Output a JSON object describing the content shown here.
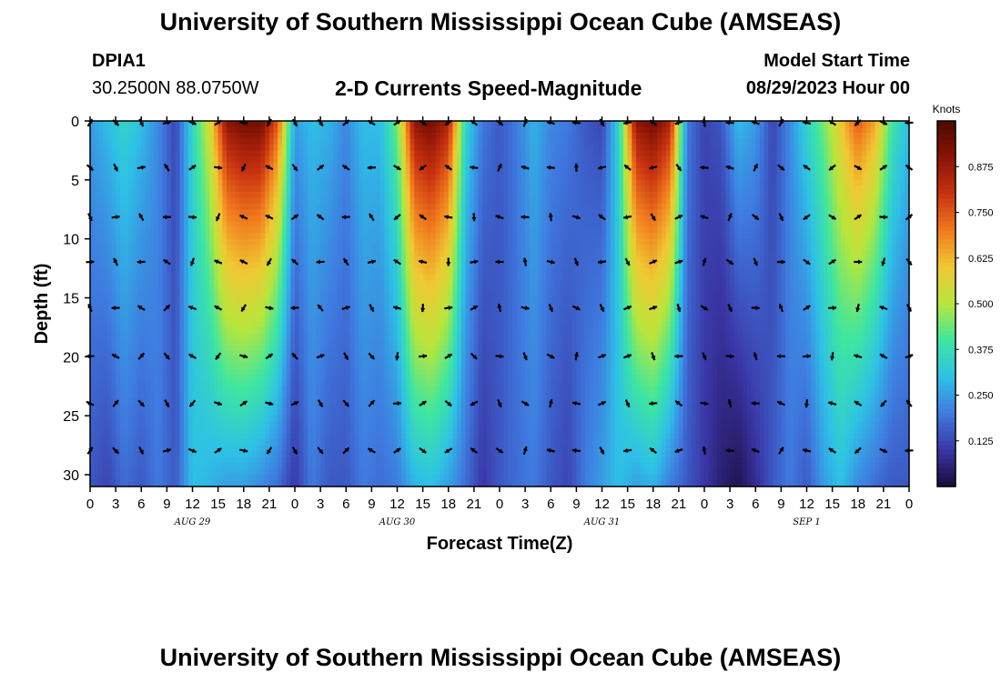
{
  "header": {
    "title": "University of Southern Mississippi Ocean Cube (AMSEAS)",
    "station_id": "DPIA1",
    "station_coords": "30.2500N  88.0750W",
    "plot_title": "2-D Currents Speed-Magnitude",
    "model_start_label": "Model Start Time",
    "model_start_value": "08/29/2023 Hour 00"
  },
  "footer": {
    "title": "University of Southern Mississippi Ocean Cube (AMSEAS)"
  },
  "chart_data": {
    "type": "heatmap",
    "title": "2-D Currents Speed-Magnitude",
    "xlabel": "Forecast Time(Z)",
    "ylabel": "Depth (ft)",
    "x_hours_range": [
      0,
      96
    ],
    "ylim": [
      0,
      31
    ],
    "y_inverted": true,
    "x_tick_labels": [
      "0",
      "3",
      "6",
      "9",
      "12",
      "15",
      "18",
      "21",
      "0",
      "3",
      "6",
      "9",
      "12",
      "15",
      "18",
      "21",
      "0",
      "3",
      "6",
      "9",
      "12",
      "15",
      "18",
      "21",
      "0",
      "3",
      "6",
      "9",
      "12",
      "15",
      "18",
      "21",
      "0"
    ],
    "y_ticks": [
      0,
      5,
      10,
      15,
      20,
      25,
      30
    ],
    "day_labels": [
      "AUG 29",
      "AUG 30",
      "AUG 31",
      "SEP 1"
    ],
    "colorbar": {
      "label": "Knots",
      "ticks": [
        "0.125",
        "0.250",
        "0.375",
        "0.500",
        "0.625",
        "0.750",
        "0.875"
      ],
      "range": [
        0,
        1.0
      ],
      "colors": [
        "#1a0a3a",
        "#3a36a6",
        "#3f7be0",
        "#2ec1e6",
        "#3ee6a0",
        "#b6e63c",
        "#f0c832",
        "#f07a1e",
        "#c83210",
        "#8a1406",
        "#4a0a00"
      ]
    },
    "arrow_depths_ft": [
      0,
      3.8,
      8,
      11.8,
      15.7,
      19.8,
      23.8,
      27.8
    ],
    "speed_profile_hours": [
      0,
      2,
      4,
      6,
      8,
      10,
      12,
      14,
      16,
      18,
      20,
      22,
      24,
      26,
      28,
      30,
      32,
      34,
      36,
      38,
      40,
      42,
      44,
      46,
      48,
      50,
      52,
      54,
      56,
      58,
      60,
      62,
      64,
      66,
      68,
      70,
      72,
      74,
      76,
      78,
      80,
      82,
      84,
      86,
      88,
      90,
      92,
      94,
      96
    ],
    "speed_surface_knots": [
      0.25,
      0.3,
      0.35,
      0.3,
      0.22,
      0.12,
      0.35,
      0.55,
      0.9,
      0.95,
      0.95,
      0.75,
      0.25,
      0.3,
      0.28,
      0.22,
      0.3,
      0.3,
      0.45,
      0.9,
      0.95,
      0.85,
      0.35,
      0.2,
      0.15,
      0.2,
      0.28,
      0.22,
      0.2,
      0.15,
      0.12,
      0.35,
      0.9,
      0.95,
      0.85,
      0.2,
      0.12,
      0.15,
      0.3,
      0.25,
      0.12,
      0.22,
      0.35,
      0.45,
      0.6,
      0.75,
      0.65,
      0.4,
      0.3
    ],
    "speed_bottom_knots": [
      0.15,
      0.12,
      0.18,
      0.15,
      0.2,
      0.15,
      0.3,
      0.28,
      0.25,
      0.25,
      0.22,
      0.18,
      0.1,
      0.2,
      0.15,
      0.15,
      0.2,
      0.18,
      0.2,
      0.28,
      0.3,
      0.25,
      0.18,
      0.1,
      0.15,
      0.18,
      0.2,
      0.15,
      0.12,
      0.2,
      0.25,
      0.3,
      0.25,
      0.28,
      0.2,
      0.15,
      0.1,
      0.05,
      0.02,
      0.08,
      0.15,
      0.2,
      0.15,
      0.25,
      0.3,
      0.22,
      0.18,
      0.15,
      0.15
    ]
  }
}
